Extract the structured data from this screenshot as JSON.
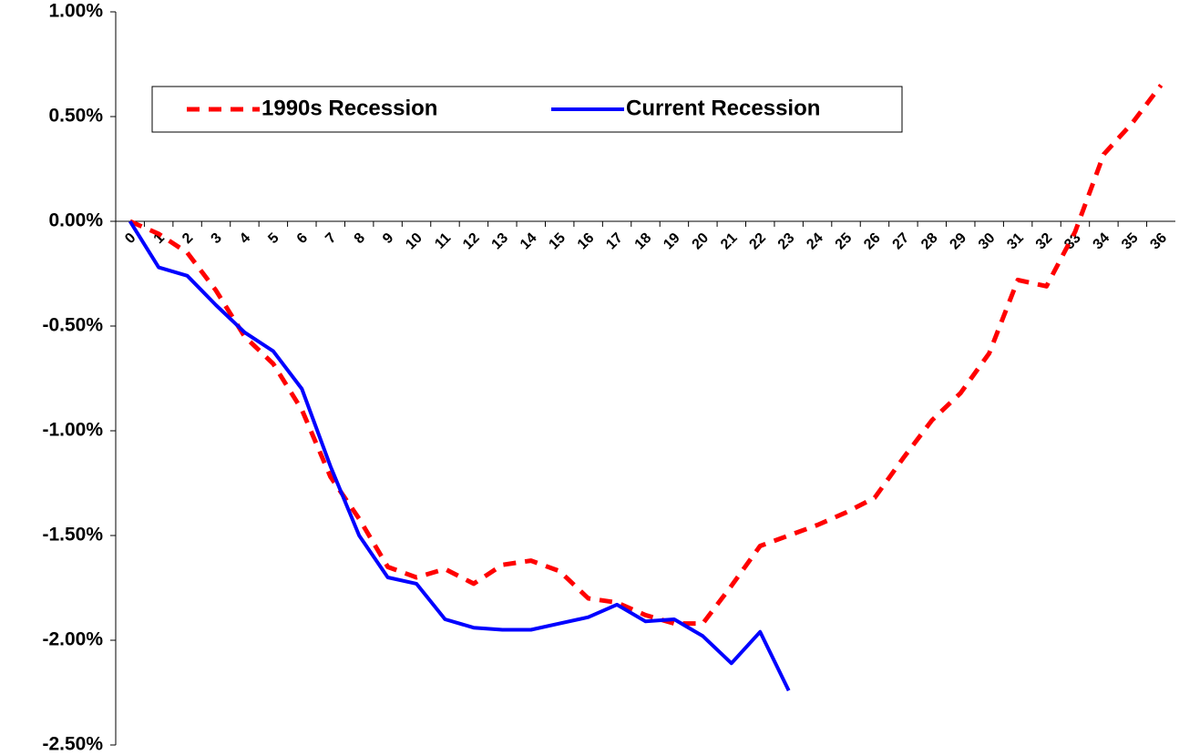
{
  "chart_data": {
    "type": "line",
    "categories": [
      0,
      1,
      2,
      3,
      4,
      5,
      6,
      7,
      8,
      9,
      10,
      11,
      12,
      13,
      14,
      15,
      16,
      17,
      18,
      19,
      20,
      21,
      22,
      23,
      24,
      25,
      26,
      27,
      28,
      29,
      30,
      31,
      32,
      33,
      34,
      35,
      36
    ],
    "series": [
      {
        "name": "1990s Recession",
        "color": "#ff0000",
        "dashed": true,
        "values": [
          0,
          -0.06,
          -0.15,
          -0.33,
          -0.55,
          -0.68,
          -0.9,
          -1.22,
          -1.42,
          -1.65,
          -1.7,
          -1.66,
          -1.73,
          -1.64,
          -1.62,
          -1.67,
          -1.8,
          -1.82,
          -1.88,
          -1.92,
          -1.92,
          -1.74,
          -1.55,
          -1.5,
          -1.45,
          -1.39,
          -1.32,
          -1.13,
          -0.95,
          -0.82,
          -0.63,
          -0.28,
          -0.31,
          -0.05,
          0.32,
          0.47,
          0.65
        ]
      },
      {
        "name": "Current Recession",
        "color": "#0000ff",
        "dashed": false,
        "values": [
          0,
          -0.22,
          -0.26,
          -0.4,
          -0.53,
          -0.62,
          -0.8,
          -1.17,
          -1.5,
          -1.7,
          -1.73,
          -1.9,
          -1.94,
          -1.95,
          -1.95,
          -1.92,
          -1.89,
          -1.83,
          -1.91,
          -1.9,
          -1.98,
          -2.11,
          -1.96,
          -2.24,
          null,
          null,
          null,
          null,
          null,
          null,
          null,
          null,
          null,
          null,
          null,
          null,
          null
        ]
      }
    ],
    "ylim": [
      -2.5,
      1.0
    ],
    "yticks": [
      {
        "value": -2.5,
        "label": "-2.50%"
      },
      {
        "value": -2.0,
        "label": "-2.00%"
      },
      {
        "value": -1.5,
        "label": "-1.50%"
      },
      {
        "value": -1.0,
        "label": "-1.00%"
      },
      {
        "value": -0.5,
        "label": "-0.50%"
      },
      {
        "value": 0,
        "label": "0.00%"
      },
      {
        "value": 0.5,
        "label": "0.50%"
      },
      {
        "value": 1.0,
        "label": "1.00%"
      }
    ],
    "legend": "top-left"
  }
}
